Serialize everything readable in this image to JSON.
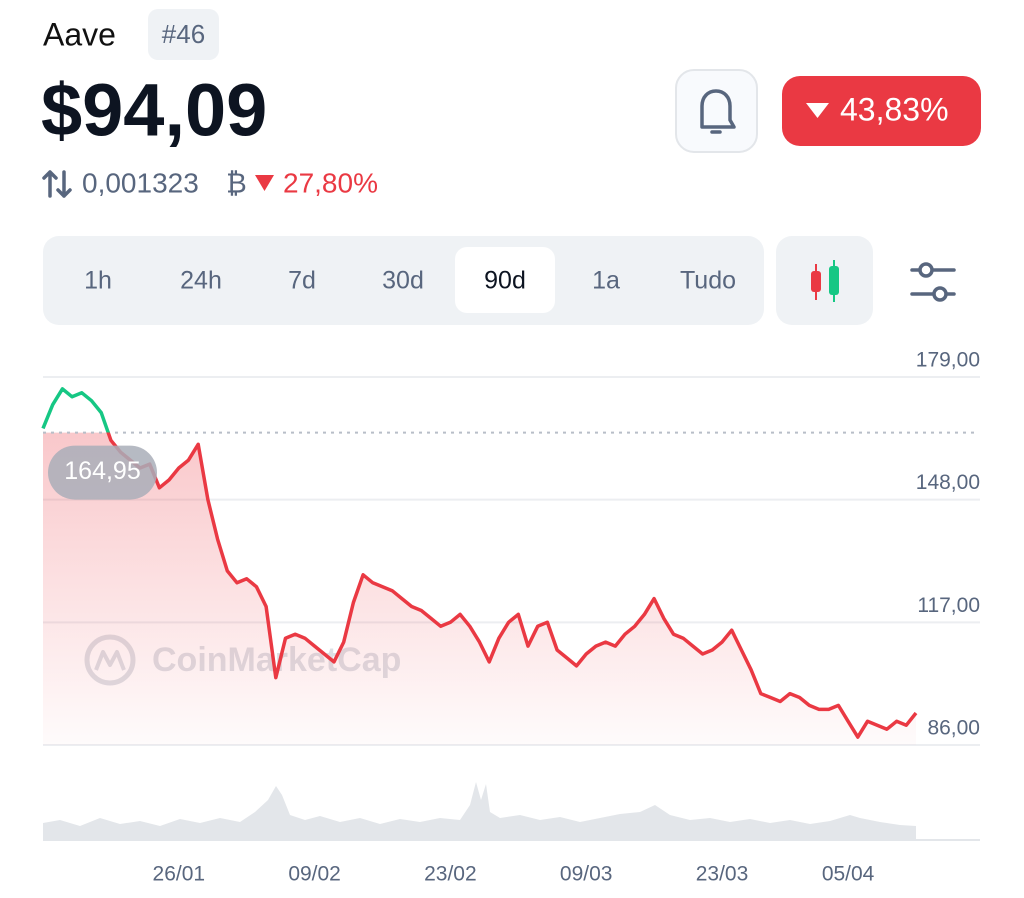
{
  "header": {
    "name": "Aave",
    "rank": "#46",
    "price": "$94,09",
    "btc_price": "0,001323",
    "btc_symbol": "₿",
    "btc_change": "27,80%",
    "change_badge": "43,83%"
  },
  "tabs": [
    {
      "label": "1h",
      "active": false
    },
    {
      "label": "24h",
      "active": false
    },
    {
      "label": "7d",
      "active": false
    },
    {
      "label": "30d",
      "active": false
    },
    {
      "label": "90d",
      "active": true
    },
    {
      "label": "1a",
      "active": false
    },
    {
      "label": "Tudo",
      "active": false
    }
  ],
  "chart_data": {
    "type": "line",
    "watermark": "CoinMarketCap",
    "color_up": "#16c784",
    "color_down": "#ea3943",
    "x": [
      "12/01",
      "13/01",
      "14/01",
      "15/01",
      "16/01",
      "17/01",
      "18/01",
      "19/01",
      "20/01",
      "21/01",
      "22/01",
      "23/01",
      "24/01",
      "25/01",
      "26/01",
      "27/01",
      "28/01",
      "29/01",
      "30/01",
      "31/01",
      "01/02",
      "02/02",
      "03/02",
      "04/02",
      "05/02",
      "06/02",
      "07/02",
      "08/02",
      "09/02",
      "10/02",
      "11/02",
      "12/02",
      "13/02",
      "14/02",
      "15/02",
      "16/02",
      "17/02",
      "18/02",
      "19/02",
      "20/02",
      "21/02",
      "22/02",
      "23/02",
      "24/02",
      "25/02",
      "26/02",
      "27/02",
      "28/02",
      "01/03",
      "02/03",
      "03/03",
      "04/03",
      "05/03",
      "06/03",
      "07/03",
      "08/03",
      "09/03",
      "10/03",
      "11/03",
      "12/03",
      "13/03",
      "14/03",
      "15/03",
      "16/03",
      "17/03",
      "18/03",
      "19/03",
      "20/03",
      "21/03",
      "22/03",
      "23/03",
      "24/03",
      "25/03",
      "26/03",
      "27/03",
      "28/03",
      "29/03",
      "30/03",
      "31/03",
      "01/04",
      "02/04",
      "03/04",
      "04/04",
      "05/04",
      "06/04",
      "07/04",
      "08/04",
      "09/04",
      "10/04",
      "11/04",
      "12/04"
    ],
    "values": [
      166,
      172,
      176,
      174,
      175,
      173,
      170,
      163,
      160,
      158,
      156,
      157,
      151,
      153,
      156,
      158,
      162,
      148,
      138,
      130,
      127,
      128,
      126,
      121,
      103,
      113,
      114,
      113,
      111,
      109,
      107,
      112,
      122,
      129,
      127,
      126,
      125,
      123,
      121,
      120,
      118,
      116,
      117,
      119,
      116,
      112,
      107,
      113,
      117,
      119,
      111,
      116,
      117,
      110,
      108,
      106,
      109,
      111,
      112,
      111,
      114,
      116,
      119,
      123,
      118,
      114,
      113,
      111,
      109,
      110,
      112,
      115,
      110,
      105,
      99,
      98,
      97,
      99,
      98,
      96,
      95,
      95,
      96,
      92,
      88,
      92,
      91,
      90,
      92,
      91,
      94.09
    ],
    "reference": {
      "value": 164.95,
      "label": "164,95"
    },
    "ylim": [
      86,
      179
    ],
    "yticks": [
      {
        "value": 179,
        "label": "179,00"
      },
      {
        "value": 148,
        "label": "148,00"
      },
      {
        "value": 117,
        "label": "117,00"
      },
      {
        "value": 86,
        "label": "86,00"
      }
    ],
    "xticks": [
      "26/01",
      "09/02",
      "23/02",
      "09/03",
      "23/03",
      "05/04"
    ],
    "grid": true
  }
}
